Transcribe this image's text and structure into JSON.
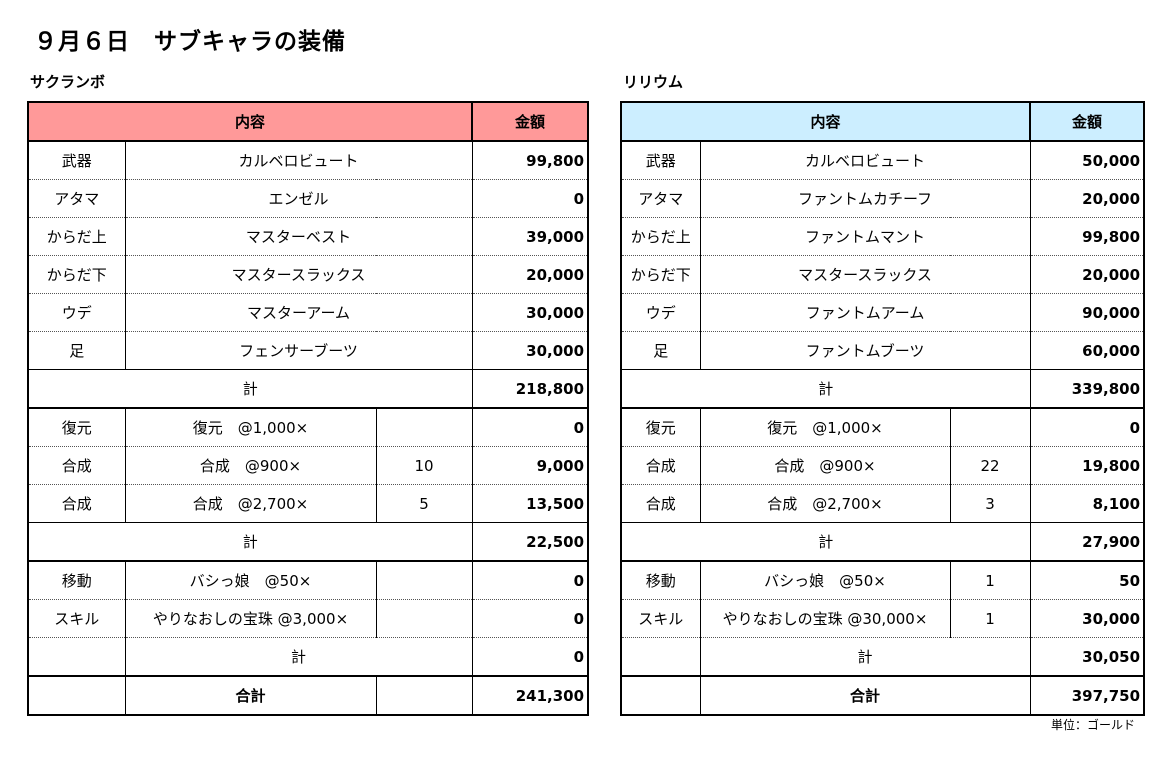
{
  "title": "９月６日　サブキャラの装備",
  "unit_note": "単位：ゴールド",
  "headers": {
    "content": "内容",
    "amount": "金額"
  },
  "left": {
    "name": "サクランボ",
    "equipment": [
      {
        "slot": "武器",
        "item": "カルベロビュート",
        "amount": "99,800"
      },
      {
        "slot": "アタマ",
        "item": "エンゼル",
        "amount": "0"
      },
      {
        "slot": "からだ上",
        "item": "マスターベスト",
        "amount": "39,000"
      },
      {
        "slot": "からだ下",
        "item": "マスタースラックス",
        "amount": "20,000"
      },
      {
        "slot": "ウデ",
        "item": "マスターアーム",
        "amount": "30,000"
      },
      {
        "slot": "足",
        "item": "フェンサーブーツ",
        "amount": "30,000"
      }
    ],
    "equipment_total_label": "計",
    "equipment_total": "218,800",
    "upkeep": [
      {
        "type": "復元",
        "desc": "復元　@1,000×",
        "qty": "",
        "amount": "0"
      },
      {
        "type": "合成",
        "desc": "合成　@900×",
        "qty": "10",
        "amount": "9,000"
      },
      {
        "type": "合成",
        "desc": "合成　@2,700×",
        "qty": "5",
        "amount": "13,500"
      }
    ],
    "upkeep_total_label": "計",
    "upkeep_total": "22,500",
    "misc": [
      {
        "type": "移動",
        "desc": "バシっ娘　@50×",
        "qty": "",
        "amount": "0"
      },
      {
        "type": "スキル",
        "desc": "やりなおしの宝珠 @3,000×",
        "qty": "",
        "amount": "0"
      }
    ],
    "misc_total_label": "計",
    "misc_total": "0",
    "grand_total_label": "合計",
    "grand_total": "241,300"
  },
  "right": {
    "name": "リリウム",
    "equipment": [
      {
        "slot": "武器",
        "item": "カルベロビュート",
        "amount": "50,000"
      },
      {
        "slot": "アタマ",
        "item": "ファントムカチーフ",
        "amount": "20,000"
      },
      {
        "slot": "からだ上",
        "item": "ファントムマント",
        "amount": "99,800"
      },
      {
        "slot": "からだ下",
        "item": "マスタースラックス",
        "amount": "20,000"
      },
      {
        "slot": "ウデ",
        "item": "ファントムアーム",
        "amount": "90,000"
      },
      {
        "slot": "足",
        "item": "ファントムブーツ",
        "amount": "60,000"
      }
    ],
    "equipment_total_label": "計",
    "equipment_total": "339,800",
    "upkeep": [
      {
        "type": "復元",
        "desc": "復元　@1,000×",
        "qty": "",
        "amount": "0"
      },
      {
        "type": "合成",
        "desc": "合成　@900×",
        "qty": "22",
        "amount": "19,800"
      },
      {
        "type": "合成",
        "desc": "合成　@2,700×",
        "qty": "3",
        "amount": "8,100"
      }
    ],
    "upkeep_total_label": "計",
    "upkeep_total": "27,900",
    "misc": [
      {
        "type": "移動",
        "desc": "バシっ娘　@50×",
        "qty": "1",
        "amount": "50"
      },
      {
        "type": "スキル",
        "desc": "やりなおしの宝珠 @30,000×",
        "qty": "1",
        "amount": "30,000"
      }
    ],
    "misc_total_label": "計",
    "misc_total": "30,050",
    "grand_total_label": "合計",
    "grand_total": "397,750"
  }
}
